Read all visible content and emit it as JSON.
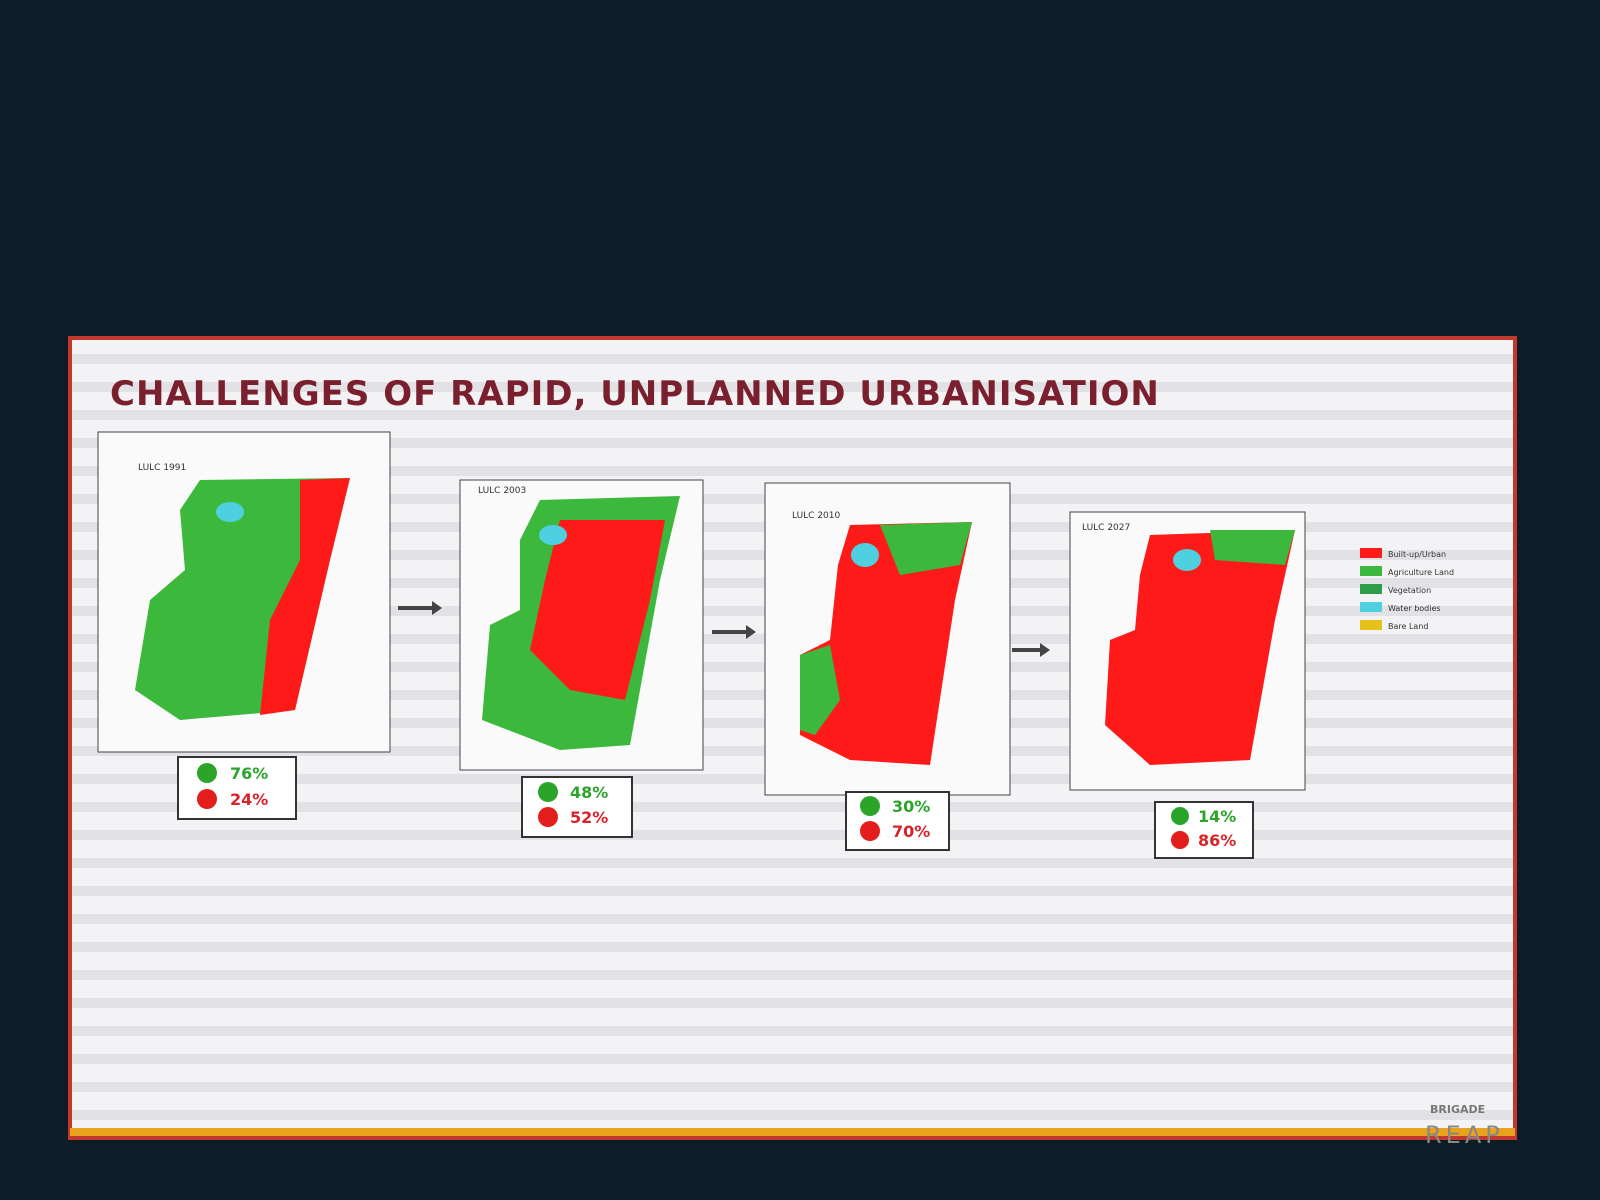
{
  "slide": {
    "title": "CHALLENGES OF RAPID, UNPLANNED URBANISATION",
    "panels": [
      {
        "label": "LULC 1991",
        "green": "76%",
        "red": "24%"
      },
      {
        "label": "LULC 2003",
        "green": "48%",
        "red": "52%"
      },
      {
        "label": "LULC 2010",
        "green": "30%",
        "red": "70%"
      },
      {
        "label": "LULC 2027",
        "green": "14%",
        "red": "86%"
      }
    ],
    "legend": [
      "Built-up/Urban",
      "Agriculture Land",
      "Vegetation",
      "Water bodies",
      "Bare Land"
    ],
    "brand": {
      "top": "BRIGADE",
      "bottom": "REAP"
    }
  }
}
